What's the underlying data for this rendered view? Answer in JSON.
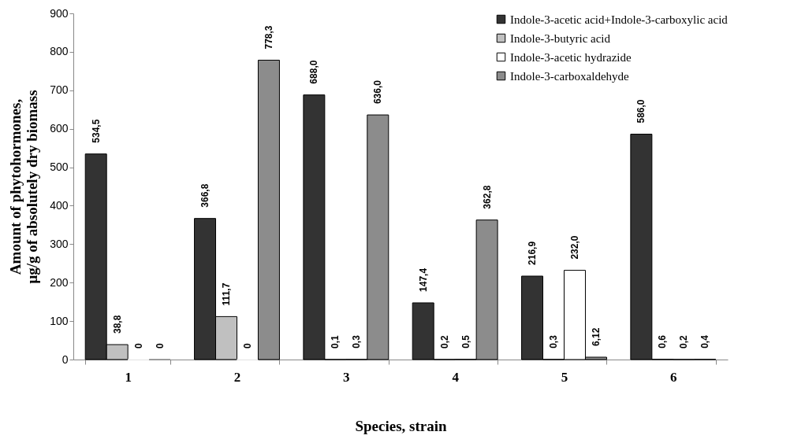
{
  "chart_data": {
    "type": "bar",
    "xlabel": "Species, strain",
    "ylabel": "Amount of phytohormones, μg/g of absolutely dry biomass",
    "categories": [
      "1",
      "2",
      "3",
      "4",
      "5",
      "6"
    ],
    "series": [
      {
        "name": "Indole-3-acetic acid+Indole-3-carboxylic acid",
        "color": "#333333",
        "values": [
          534.5,
          366.8,
          688.0,
          147.4,
          216.9,
          586.0
        ],
        "value_labels": [
          "534,5",
          "366,8",
          "688,0",
          "147,4",
          "216,9",
          "586,0"
        ]
      },
      {
        "name": "Indole-3-butyric acid",
        "color": "#c0c0c0",
        "values": [
          38.8,
          111.7,
          0.1,
          0.2,
          0.3,
          0.6
        ],
        "value_labels": [
          "38,8",
          "111,7",
          "0,1",
          "0,2",
          "0,3",
          "0,6"
        ]
      },
      {
        "name": "Indole-3-acetic hydrazide",
        "color": "#ffffff",
        "values": [
          0,
          0,
          0.3,
          0.5,
          232.0,
          0.2
        ],
        "value_labels": [
          "0",
          "0",
          "0,3",
          "0,5",
          "232,0",
          "0,2"
        ]
      },
      {
        "name": "Indole-3-carboxaldehyde",
        "color": "#8c8c8c",
        "values": [
          0,
          778.3,
          636.0,
          362.8,
          6.12,
          0.4
        ],
        "value_labels": [
          "0",
          "778,3",
          "636,0",
          "362,8",
          "6,12",
          "0,4"
        ]
      }
    ],
    "ylim": [
      0,
      900
    ],
    "yticks": [
      0,
      100,
      200,
      300,
      400,
      500,
      600,
      700,
      800,
      900
    ],
    "grid": false,
    "legend": "top right"
  }
}
